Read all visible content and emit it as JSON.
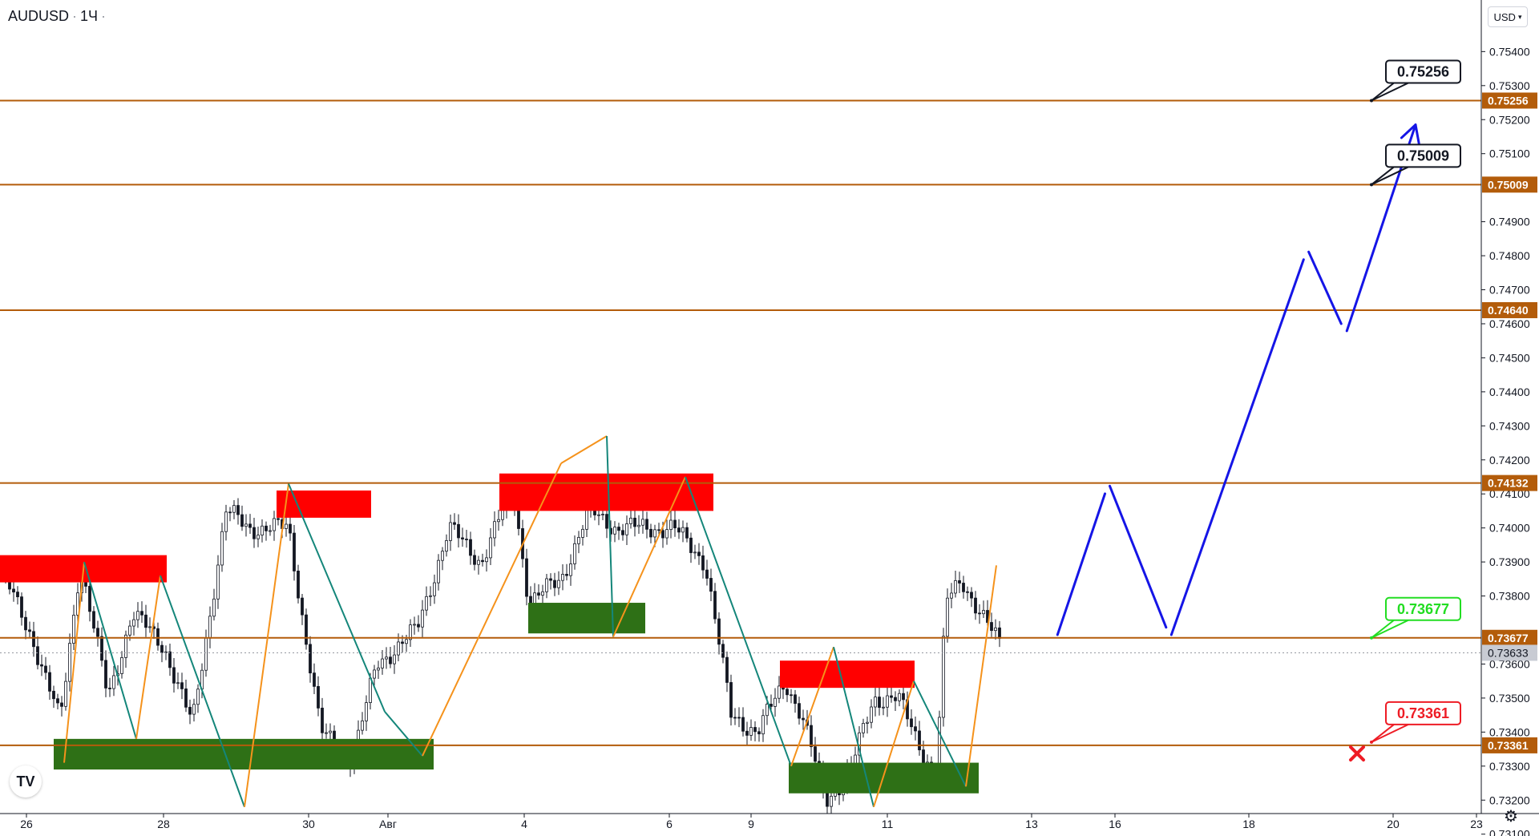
{
  "header": {
    "symbol": "AUDUSD",
    "interval": "1Ч"
  },
  "currency_selector": {
    "value": "USD"
  },
  "icons": {
    "logo": "tradingview-logo-icon",
    "settings": "gear-icon",
    "currency_dropdown": "chevron-down-icon",
    "stop_marker": "red-x-icon"
  },
  "colors": {
    "level_line": "#b35c0a",
    "supply_zone": "#ff0000",
    "demand_zone": "#2e7016",
    "projection": "#1515e6",
    "zigzag_up": "#f5921b",
    "zigzag_down": "#14867a",
    "stop": "#ee1c25",
    "entry": "#22dd22"
  },
  "chart_data": {
    "type": "candlestick",
    "title": "AUDUSD",
    "interval": "1Ч",
    "y_axis": {
      "ticks": [
        "0.75400",
        "0.75300",
        "0.75200",
        "0.75100",
        "0.74900",
        "0.74800",
        "0.74700",
        "0.74600",
        "0.74500",
        "0.74400",
        "0.74300",
        "0.74200",
        "0.74100",
        "0.74000",
        "0.73900",
        "0.73800",
        "0.73600",
        "0.73500",
        "0.73400",
        "0.73300",
        "0.73200",
        "0.73100"
      ],
      "range": [
        0.7309,
        0.7544
      ]
    },
    "x_axis": {
      "ticks": [
        "26",
        "28",
        "30",
        "Авг",
        "4",
        "6",
        "9",
        "11",
        "13",
        "16",
        "18",
        "20",
        "23"
      ]
    },
    "current_price": "0.73633",
    "levels": [
      "0.75256",
      "0.75009",
      "0.74640",
      "0.74132",
      "0.73677",
      "0.73361"
    ],
    "annotations": {
      "target_2": "0.75256",
      "target_1": "0.75009",
      "entry": "0.73677",
      "stop": "0.73361"
    },
    "supply_zones": [
      {
        "from": 0.7392,
        "to": 0.7384
      },
      {
        "from": 0.7411,
        "to": 0.7403
      },
      {
        "from": 0.7416,
        "to": 0.7405
      },
      {
        "from": 0.7361,
        "to": 0.7353
      }
    ],
    "demand_zones": [
      {
        "from": 0.7338,
        "to": 0.7329
      },
      {
        "from": 0.7378,
        "to": 0.7369
      },
      {
        "from": 0.7331,
        "to": 0.7322
      }
    ],
    "projected_path": [
      0.73677,
      0.74132,
      0.73677,
      0.7482,
      0.7457,
      0.75185
    ]
  }
}
